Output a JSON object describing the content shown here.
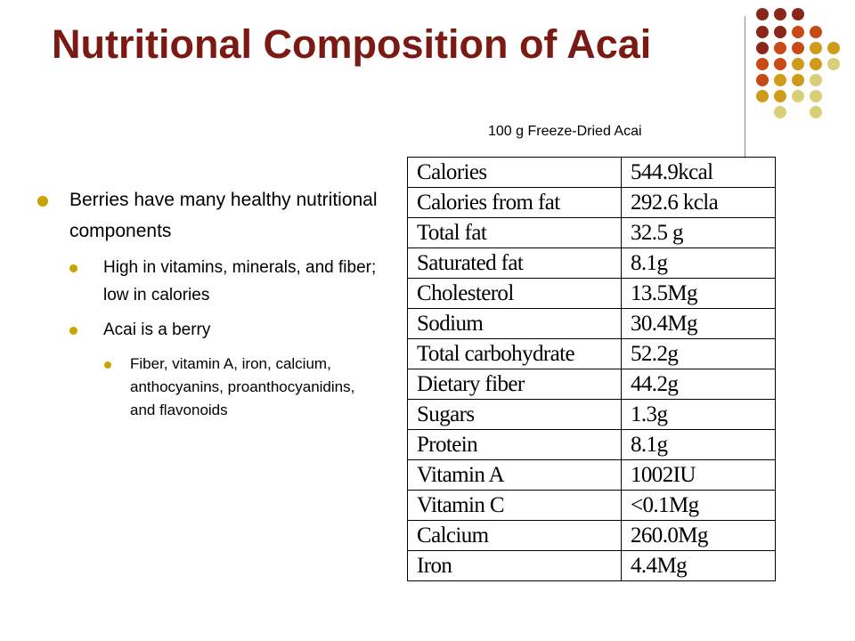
{
  "slide": {
    "title": "Nutritional Composition of Acai",
    "table_caption": "100 g Freeze-Dried Acai",
    "colors": {
      "title": "#7b1a12",
      "bullet": "#c9a400",
      "dot_palette": [
        "#8b2718",
        "#c84a16",
        "#d19b1a",
        "#d9cf7a"
      ]
    },
    "bullets": [
      {
        "level": 1,
        "text": "Berries have many healthy nutritional components",
        "children": [
          {
            "level": 2,
            "text": "High in vitamins, minerals, and fiber; low in calories",
            "children": []
          },
          {
            "level": 2,
            "text": "Acai is a berry",
            "children": [
              {
                "level": 3,
                "text": "Fiber, vitamin A, iron, calcium,  anthocyanins, proanthocyanidins, and flavonoids"
              }
            ]
          }
        ]
      }
    ]
  },
  "nutrition_table": {
    "rows": [
      {
        "name": "Calories",
        "value": "544.9kcal"
      },
      {
        "name": "Calories from fat",
        "value": "292.6 kcla"
      },
      {
        "name": "Total fat",
        "value": "32.5 g"
      },
      {
        "name": "Saturated fat",
        "value": "8.1g"
      },
      {
        "name": "Cholesterol",
        "value": "13.5Mg"
      },
      {
        "name": "Sodium",
        "value": "30.4Mg"
      },
      {
        "name": "Total carbohydrate",
        "value": "52.2g"
      },
      {
        "name": "Dietary fiber",
        "value": "44.2g"
      },
      {
        "name": "Sugars",
        "value": "1.3g"
      },
      {
        "name": "Protein",
        "value": "8.1g"
      },
      {
        "name": "Vitamin A",
        "value": "1002IU"
      },
      {
        "name": "Vitamin C",
        "value": "<0.1Mg"
      },
      {
        "name": "Calcium",
        "value": "260.0Mg"
      },
      {
        "name": "Iron",
        "value": "4.4Mg"
      }
    ]
  }
}
